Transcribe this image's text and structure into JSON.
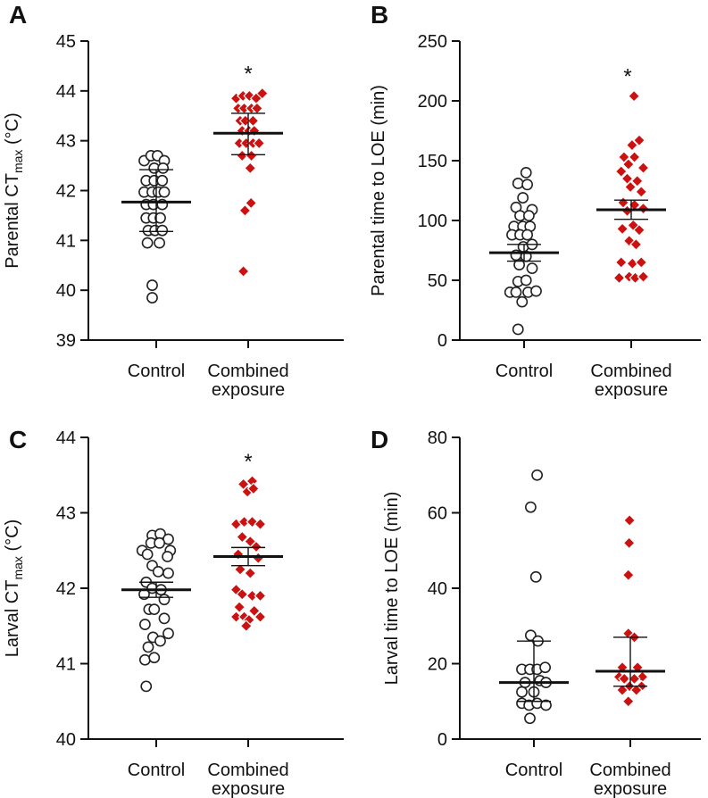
{
  "chart_data": [
    {
      "type": "scatter",
      "panel_label": "A",
      "ylabel": "Parental CT",
      "ylabel_sub": "max",
      "ylabel_suffix": " (°C)",
      "ylim": [
        39,
        45
      ],
      "yticks": [
        "39",
        "40",
        "41",
        "42",
        "43",
        "44",
        "45"
      ],
      "categories": [
        "Control",
        "Combined\nexposure"
      ],
      "significance": "*",
      "groups": [
        {
          "name": "Control",
          "mean": 41.77,
          "err_low": 41.18,
          "err_high": 42.42,
          "points": [
            [
              -0.3,
              42.6
            ],
            [
              -0.13,
              42.7
            ],
            [
              0.03,
              42.7
            ],
            [
              0.2,
              42.6
            ],
            [
              -0.05,
              42.45
            ],
            [
              0.17,
              42.45
            ],
            [
              -0.25,
              42.2
            ],
            [
              -0.05,
              42.2
            ],
            [
              0.15,
              42.2
            ],
            [
              -0.3,
              41.97
            ],
            [
              -0.1,
              41.97
            ],
            [
              0.05,
              41.97
            ],
            [
              0.2,
              41.97
            ],
            [
              -0.25,
              41.72
            ],
            [
              -0.07,
              41.72
            ],
            [
              0.15,
              41.72
            ],
            [
              -0.25,
              41.45
            ],
            [
              -0.07,
              41.45
            ],
            [
              0.1,
              41.45
            ],
            [
              -0.2,
              41.2
            ],
            [
              -0.03,
              41.2
            ],
            [
              0.15,
              41.2
            ],
            [
              -0.22,
              40.95
            ],
            [
              0.08,
              40.95
            ],
            [
              -0.1,
              40.1
            ],
            [
              -0.1,
              39.85
            ]
          ]
        },
        {
          "name": "Combined exposure",
          "mean": 43.15,
          "err_low": 42.72,
          "err_high": 43.55,
          "points": [
            [
              -0.3,
              43.85
            ],
            [
              -0.13,
              43.9
            ],
            [
              0.03,
              43.9
            ],
            [
              0.2,
              43.85
            ],
            [
              0.35,
              43.95
            ],
            [
              -0.25,
              43.65
            ],
            [
              -0.1,
              43.65
            ],
            [
              0.08,
              43.65
            ],
            [
              0.22,
              43.65
            ],
            [
              -0.2,
              43.4
            ],
            [
              -0.07,
              43.4
            ],
            [
              0.12,
              43.4
            ],
            [
              -0.15,
              43.2
            ],
            [
              0.02,
              43.2
            ],
            [
              0.15,
              43.2
            ],
            [
              -0.22,
              42.95
            ],
            [
              -0.05,
              42.95
            ],
            [
              0.12,
              42.95
            ],
            [
              0.27,
              42.95
            ],
            [
              -0.15,
              42.7
            ],
            [
              0.08,
              42.7
            ],
            [
              0.05,
              42.45
            ],
            [
              0.07,
              41.75
            ],
            [
              -0.08,
              41.6
            ],
            [
              -0.12,
              40.38
            ]
          ]
        }
      ]
    },
    {
      "type": "scatter",
      "panel_label": "B",
      "ylabel": "Parental time to LOE (min)",
      "ylim": [
        0,
        250
      ],
      "yticks": [
        "0",
        "50",
        "100",
        "150",
        "200",
        "250"
      ],
      "categories": [
        "Control",
        "Combined\nexposure"
      ],
      "significance": "*",
      "groups": [
        {
          "name": "Control",
          "mean": 73,
          "err_low": 66,
          "err_high": 80,
          "points": [
            [
              0.05,
              140
            ],
            [
              -0.15,
              131
            ],
            [
              0.08,
              130
            ],
            [
              -0.03,
              119
            ],
            [
              -0.2,
              111
            ],
            [
              0.2,
              109
            ],
            [
              -0.1,
              104
            ],
            [
              0.12,
              104
            ],
            [
              -0.25,
              95
            ],
            [
              -0.03,
              95
            ],
            [
              0.15,
              95
            ],
            [
              -0.3,
              88
            ],
            [
              -0.1,
              88
            ],
            [
              0.08,
              88
            ],
            [
              -0.02,
              78
            ],
            [
              0.2,
              80
            ],
            [
              -0.2,
              71
            ],
            [
              0.05,
              70
            ],
            [
              -0.12,
              63
            ],
            [
              0.2,
              60
            ],
            [
              -0.15,
              49
            ],
            [
              0.05,
              50
            ],
            [
              -0.35,
              40
            ],
            [
              -0.2,
              40
            ],
            [
              0.1,
              40
            ],
            [
              0.3,
              41
            ],
            [
              -0.05,
              32
            ],
            [
              -0.15,
              9
            ]
          ]
        },
        {
          "name": "Combined exposure",
          "mean": 109,
          "err_low": 101,
          "err_high": 117,
          "points": [
            [
              0.07,
              204
            ],
            [
              0.2,
              167
            ],
            [
              0.02,
              163
            ],
            [
              -0.18,
              153
            ],
            [
              0.08,
              153
            ],
            [
              -0.07,
              147
            ],
            [
              0.3,
              144
            ],
            [
              -0.25,
              141
            ],
            [
              -0.1,
              135
            ],
            [
              0.15,
              133
            ],
            [
              -0.02,
              128
            ],
            [
              0.25,
              124
            ],
            [
              -0.2,
              115
            ],
            [
              0.08,
              113
            ],
            [
              -0.1,
              108
            ],
            [
              0.3,
              110
            ],
            [
              0.05,
              96
            ],
            [
              -0.22,
              93
            ],
            [
              0.2,
              92
            ],
            [
              -0.05,
              83
            ],
            [
              0.12,
              80
            ],
            [
              -0.25,
              65
            ],
            [
              0.03,
              64
            ],
            [
              0.25,
              65
            ],
            [
              -0.3,
              52
            ],
            [
              -0.05,
              53
            ],
            [
              0.1,
              52
            ],
            [
              0.3,
              53
            ]
          ]
        }
      ]
    },
    {
      "type": "scatter",
      "panel_label": "C",
      "ylabel": "Larval CT",
      "ylabel_sub": "max",
      "ylabel_suffix": " (°C)",
      "ylim": [
        40,
        44
      ],
      "yticks": [
        "40",
        "41",
        "42",
        "43",
        "44"
      ],
      "categories": [
        "Control",
        "Combined\nexposure"
      ],
      "significance": "*",
      "groups": [
        {
          "name": "Control",
          "mean": 41.98,
          "err_low": 41.88,
          "err_high": 42.08,
          "points": [
            [
              -0.1,
              42.7
            ],
            [
              0.1,
              42.72
            ],
            [
              0.3,
              42.65
            ],
            [
              -0.13,
              42.6
            ],
            [
              0.08,
              42.6
            ],
            [
              0.35,
              42.5
            ],
            [
              -0.35,
              42.5
            ],
            [
              -0.22,
              42.45
            ],
            [
              0.28,
              42.42
            ],
            [
              -0.1,
              42.3
            ],
            [
              0.05,
              42.22
            ],
            [
              0.3,
              42.2
            ],
            [
              -0.25,
              42.08
            ],
            [
              -0.1,
              42.0
            ],
            [
              0.12,
              41.98
            ],
            [
              -0.3,
              41.92
            ],
            [
              0.2,
              41.85
            ],
            [
              -0.18,
              41.72
            ],
            [
              -0.05,
              41.72
            ],
            [
              0.2,
              41.6
            ],
            [
              -0.28,
              41.52
            ],
            [
              0.3,
              41.4
            ],
            [
              -0.08,
              41.35
            ],
            [
              0.1,
              41.3
            ],
            [
              -0.2,
              41.22
            ],
            [
              -0.28,
              41.05
            ],
            [
              -0.05,
              41.08
            ],
            [
              -0.25,
              40.7
            ]
          ]
        },
        {
          "name": "Combined exposure",
          "mean": 42.42,
          "err_low": 42.3,
          "err_high": 42.54,
          "points": [
            [
              -0.12,
              43.38
            ],
            [
              0.1,
              43.42
            ],
            [
              -0.02,
              43.28
            ],
            [
              0.13,
              43.32
            ],
            [
              -0.3,
              42.85
            ],
            [
              -0.1,
              42.88
            ],
            [
              0.1,
              42.88
            ],
            [
              0.3,
              42.85
            ],
            [
              -0.15,
              42.68
            ],
            [
              0.05,
              42.62
            ],
            [
              0.2,
              42.55
            ],
            [
              -0.25,
              42.45
            ],
            [
              0.25,
              42.4
            ],
            [
              -0.2,
              42.25
            ],
            [
              0.05,
              42.2
            ],
            [
              -0.3,
              41.98
            ],
            [
              -0.15,
              41.92
            ],
            [
              0.1,
              41.9
            ],
            [
              0.3,
              41.9
            ],
            [
              -0.22,
              41.75
            ],
            [
              0.15,
              41.7
            ],
            [
              -0.3,
              41.62
            ],
            [
              -0.1,
              41.62
            ],
            [
              0.3,
              41.62
            ],
            [
              0.02,
              41.58
            ],
            [
              -0.05,
              41.5
            ]
          ]
        }
      ]
    },
    {
      "type": "scatter",
      "panel_label": "D",
      "ylabel": "Larval time to LOE (min)",
      "ylim": [
        0,
        80
      ],
      "yticks": [
        "0",
        "20",
        "40",
        "60",
        "80"
      ],
      "categories": [
        "Control",
        "Combined\nexposure"
      ],
      "significance": "",
      "groups": [
        {
          "name": "Control",
          "mean": 15,
          "err_low": 10,
          "err_high": 26,
          "points": [
            [
              0.08,
              70
            ],
            [
              -0.08,
              61.5
            ],
            [
              0.05,
              43
            ],
            [
              -0.08,
              27.5
            ],
            [
              0.1,
              26
            ],
            [
              -0.3,
              18.5
            ],
            [
              -0.1,
              18.5
            ],
            [
              0.08,
              18.5
            ],
            [
              0.28,
              19
            ],
            [
              -0.22,
              15
            ],
            [
              0.15,
              15.5
            ],
            [
              0.3,
              15
            ],
            [
              -0.3,
              12.5
            ],
            [
              0.0,
              12.5
            ],
            [
              -0.3,
              9.5
            ],
            [
              -0.12,
              9
            ],
            [
              0.08,
              9.5
            ],
            [
              0.3,
              9
            ],
            [
              -0.1,
              5.5
            ]
          ]
        },
        {
          "name": "Combined exposure",
          "mean": 18,
          "err_low": 14,
          "err_high": 27,
          "points": [
            [
              -0.02,
              58
            ],
            [
              -0.03,
              52
            ],
            [
              -0.05,
              43.5
            ],
            [
              -0.05,
              28
            ],
            [
              0.1,
              27
            ],
            [
              -0.2,
              19
            ],
            [
              0.18,
              19
            ],
            [
              -0.28,
              16.5
            ],
            [
              0.3,
              16.5
            ],
            [
              -0.15,
              16
            ],
            [
              0.1,
              16
            ],
            [
              -0.02,
              14
            ],
            [
              0.28,
              14
            ],
            [
              -0.2,
              13
            ],
            [
              0.15,
              13
            ],
            [
              -0.05,
              10
            ]
          ]
        }
      ]
    }
  ]
}
